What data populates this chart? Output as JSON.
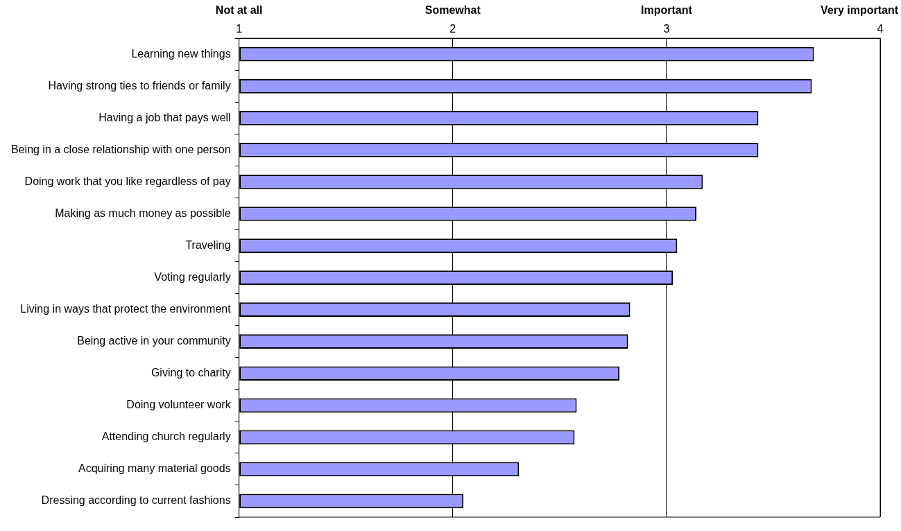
{
  "chart_data": {
    "type": "bar",
    "orientation": "horizontal",
    "categories": [
      "Learning new things",
      "Having strong ties to friends or family",
      "Having a job that pays well",
      "Being in a close relationship with one person",
      "Doing work that you like regardless of pay",
      "Making as much money as possible",
      "Traveling",
      "Voting regularly",
      "Living in ways that protect the environment",
      "Being active in your community",
      "Giving to charity",
      "Doing volunteer work",
      "Attending church regularly",
      "Acquiring many material goods",
      "Dressing according to current fashions"
    ],
    "values": [
      3.69,
      3.68,
      3.43,
      3.43,
      3.17,
      3.14,
      3.05,
      3.03,
      2.83,
      2.82,
      2.78,
      2.58,
      2.57,
      2.31,
      2.05
    ],
    "color": "#9999ff",
    "xlim": [
      1,
      4
    ],
    "xticks": [
      1,
      2,
      3,
      4
    ],
    "annotations": [
      "Not at all",
      "Somewhat",
      "Important",
      "Very important"
    ],
    "grid": "x",
    "legend": false
  }
}
